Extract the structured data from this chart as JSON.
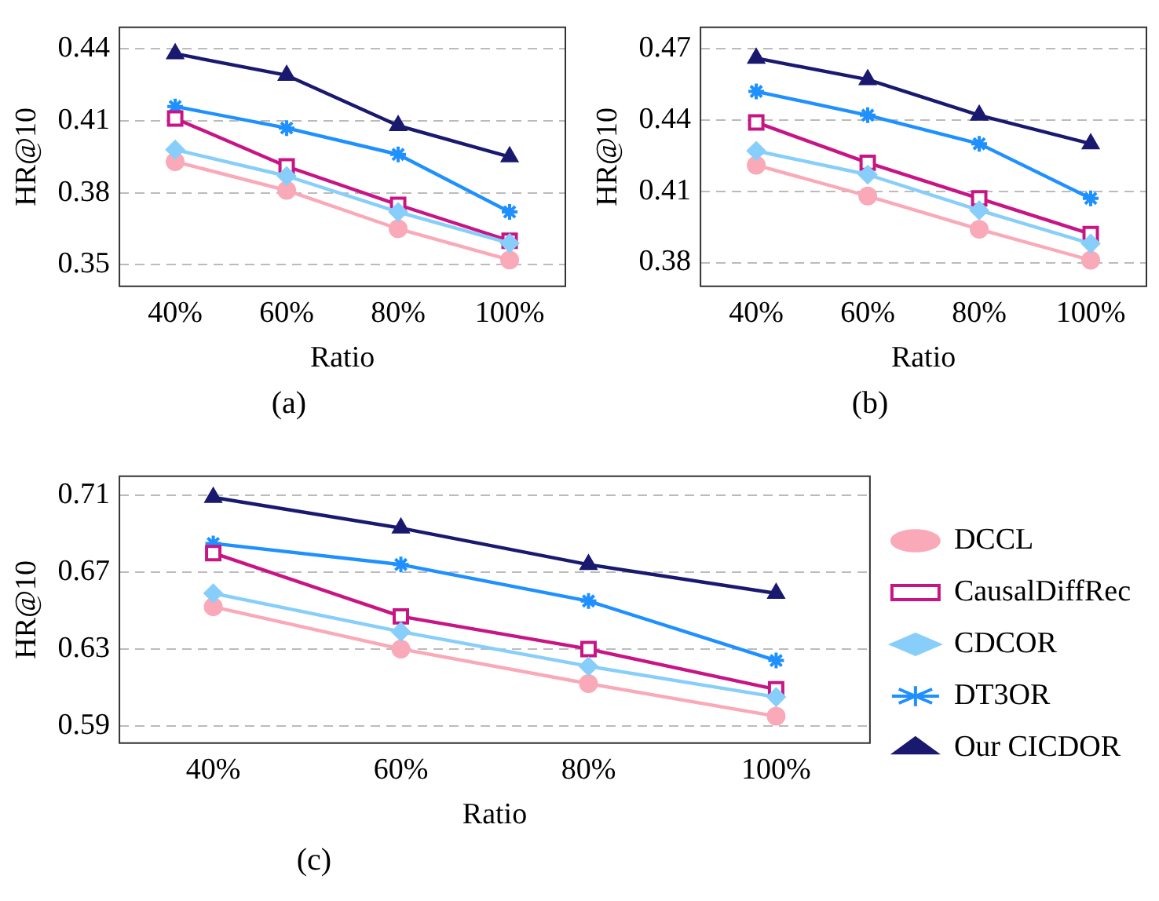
{
  "chart_data": [
    {
      "type": "line",
      "xlabel": "Ratio",
      "ylabel": "HR@10",
      "annotations": [
        "(a)"
      ],
      "categories": [
        "40%",
        "60%",
        "80%",
        "100%"
      ],
      "ylim": [
        0.341,
        0.449
      ],
      "yticks": [
        0.35,
        0.38,
        0.41,
        0.44
      ],
      "grid": "y",
      "legend": false,
      "series": [
        {
          "color": "#f9a9b8",
          "marker": "circle",
          "values": [
            0.393,
            0.381,
            0.365,
            0.352
          ]
        },
        {
          "color": "#c71585",
          "marker": "square",
          "values": [
            0.411,
            0.391,
            0.375,
            0.36
          ]
        },
        {
          "color": "#87cefa",
          "marker": "diamond",
          "values": [
            0.398,
            0.387,
            0.372,
            0.359
          ]
        },
        {
          "color": "#1e90ff",
          "marker": "cross",
          "values": [
            0.416,
            0.407,
            0.396,
            0.372
          ]
        },
        {
          "color": "#191970",
          "marker": "triangle",
          "values": [
            0.438,
            0.429,
            0.408,
            0.395
          ]
        }
      ]
    },
    {
      "type": "line",
      "xlabel": "Ratio",
      "ylabel": "HR@10",
      "annotations": [
        "(b)"
      ],
      "categories": [
        "40%",
        "60%",
        "80%",
        "100%"
      ],
      "ylim": [
        0.37,
        0.479
      ],
      "yticks": [
        0.38,
        0.41,
        0.44,
        0.47
      ],
      "grid": "y",
      "legend": false,
      "series": [
        {
          "color": "#f9a9b8",
          "marker": "circle",
          "values": [
            0.421,
            0.408,
            0.394,
            0.381
          ]
        },
        {
          "color": "#c71585",
          "marker": "square",
          "values": [
            0.439,
            0.422,
            0.407,
            0.392
          ]
        },
        {
          "color": "#87cefa",
          "marker": "diamond",
          "values": [
            0.427,
            0.417,
            0.402,
            0.388
          ]
        },
        {
          "color": "#1e90ff",
          "marker": "cross",
          "values": [
            0.452,
            0.442,
            0.43,
            0.407
          ]
        },
        {
          "color": "#191970",
          "marker": "triangle",
          "values": [
            0.466,
            0.457,
            0.442,
            0.43
          ]
        }
      ]
    },
    {
      "type": "line",
      "xlabel": "Ratio",
      "ylabel": "HR@10",
      "annotations": [
        "(c)"
      ],
      "categories": [
        "40%",
        "60%",
        "80%",
        "100%"
      ],
      "ylim": [
        0.581,
        0.72
      ],
      "yticks": [
        0.59,
        0.63,
        0.67,
        0.71
      ],
      "grid": "y",
      "legend": "right",
      "series": [
        {
          "name": "DCCL",
          "color": "#f9a9b8",
          "marker": "circle",
          "values": [
            0.652,
            0.63,
            0.612,
            0.595
          ]
        },
        {
          "name": "CausalDiffRec",
          "color": "#c71585",
          "marker": "square",
          "values": [
            0.68,
            0.647,
            0.63,
            0.609
          ]
        },
        {
          "name": "CDCOR",
          "color": "#87cefa",
          "marker": "diamond",
          "values": [
            0.659,
            0.639,
            0.621,
            0.605
          ]
        },
        {
          "name": "DT3OR",
          "color": "#1e90ff",
          "marker": "cross",
          "values": [
            0.685,
            0.674,
            0.655,
            0.624
          ]
        },
        {
          "name": "Our CICDOR",
          "color": "#191970",
          "marker": "triangle",
          "values": [
            0.709,
            0.693,
            0.674,
            0.659
          ]
        }
      ]
    }
  ]
}
